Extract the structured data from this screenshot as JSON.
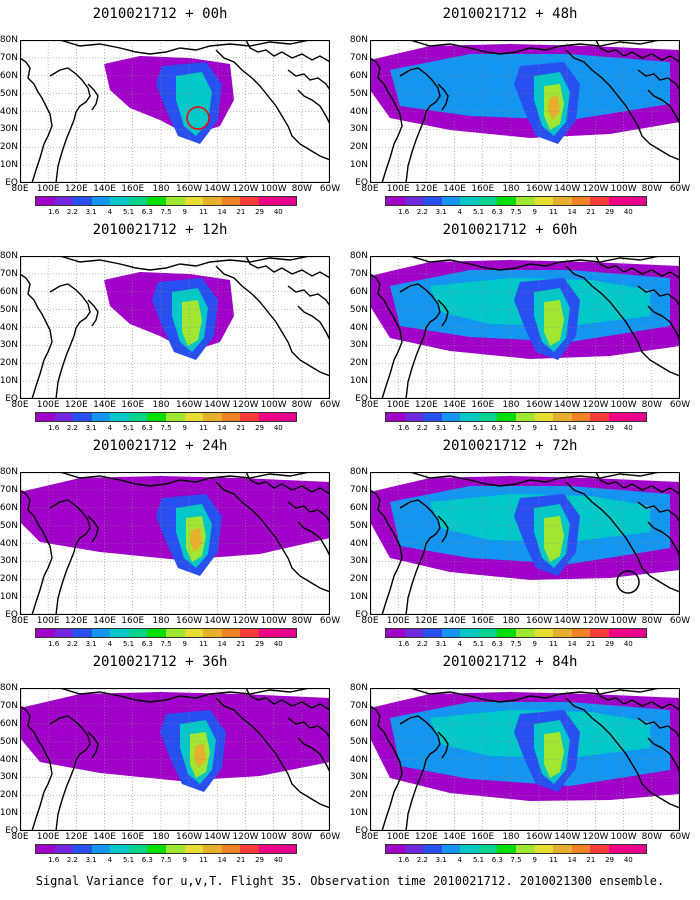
{
  "panels": [
    {
      "title": "2010021712 + 00h",
      "level": 0,
      "circle": "red"
    },
    {
      "title": "2010021712 + 48h",
      "level": 4,
      "circle": null
    },
    {
      "title": "2010021712 + 12h",
      "level": 1,
      "circle": null
    },
    {
      "title": "2010021712 + 60h",
      "level": 5,
      "circle": null
    },
    {
      "title": "2010021712 + 24h",
      "level": 2,
      "circle": null
    },
    {
      "title": "2010021712 + 72h",
      "level": 6,
      "circle": "black"
    },
    {
      "title": "2010021712 + 36h",
      "level": 3,
      "circle": null
    },
    {
      "title": "2010021712 + 84h",
      "level": 7,
      "circle": null
    }
  ],
  "lat_labels": [
    "80N",
    "70N",
    "60N",
    "50N",
    "40N",
    "30N",
    "20N",
    "10N",
    "EQ"
  ],
  "lon_labels": [
    "80E",
    "100E",
    "120E",
    "140E",
    "160E",
    "180",
    "160W",
    "140W",
    "120W",
    "100W",
    "80W",
    "60W"
  ],
  "colorbar": {
    "labels": [
      "1.6",
      "2.2",
      "3.1",
      "4",
      "5.1",
      "6.3",
      "7.5",
      "9",
      "11",
      "14",
      "21",
      "29",
      "40"
    ],
    "colors": [
      "#a000c8",
      "#6e28dc",
      "#2850f0",
      "#1496f0",
      "#00c8c8",
      "#00d28c",
      "#00dc00",
      "#a0e632",
      "#e6dc32",
      "#e6af2d",
      "#f08228",
      "#fa3c3c",
      "#f00082"
    ]
  },
  "caption": "Signal Variance for u,v,T. Flight 35. Observation time 2010021712. 2010021300 ensemble."
}
